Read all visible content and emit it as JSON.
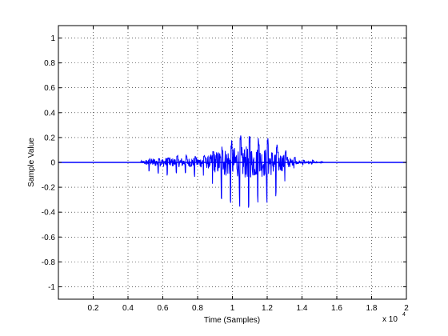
{
  "chart_data": {
    "type": "line",
    "title": "",
    "xlabel": "Time (Samples)",
    "ylabel": "Sample Value",
    "x_exponent_label": "x 10",
    "x_exponent_power": "4",
    "xlim": [
      0,
      20000
    ],
    "ylim": [
      -1.1,
      1.1
    ],
    "x_ticks": [
      2000,
      4000,
      6000,
      8000,
      10000,
      12000,
      14000,
      16000,
      18000,
      20000
    ],
    "x_tick_labels": [
      "0.2",
      "0.4",
      "0.6",
      "0.8",
      "1",
      "1.2",
      "1.4",
      "1.6",
      "1.8",
      "2"
    ],
    "y_ticks": [
      -1,
      -0.8,
      -0.6,
      -0.4,
      -0.2,
      0,
      0.2,
      0.4,
      0.6,
      0.8,
      1
    ],
    "y_tick_labels": [
      "-1",
      "-0.8",
      "-0.6",
      "-0.4",
      "-0.2",
      "0",
      "0.2",
      "0.4",
      "0.6",
      "0.8",
      "1"
    ],
    "grid": true,
    "line_color": "#0000ff",
    "series": [
      {
        "values_description": "audio waveform envelope",
        "envelope": {
          "x": [
            0,
            4700,
            4800,
            5000,
            5300,
            5500,
            5700,
            6000,
            6300,
            6600,
            7000,
            7400,
            7800,
            8200,
            8600,
            8900,
            9200,
            9500,
            9800,
            10000,
            10200,
            10500,
            10800,
            11100,
            11400,
            11700,
            12000,
            12300,
            12600,
            12900,
            13200,
            13500,
            13800,
            14000,
            14500,
            15000,
            15300,
            20000
          ],
          "upper": [
            0,
            0,
            0.02,
            0.04,
            0.03,
            0.05,
            0.04,
            0.05,
            0.04,
            0.06,
            0.05,
            0.06,
            0.05,
            0.06,
            0.07,
            0.1,
            0.12,
            0.15,
            0.17,
            0.18,
            0.2,
            0.22,
            0.22,
            0.24,
            0.23,
            0.21,
            0.2,
            0.18,
            0.15,
            0.12,
            0.1,
            0.06,
            0.03,
            0.02,
            0.02,
            0.015,
            0,
            0
          ],
          "lower": [
            0,
            0,
            -0.02,
            -0.06,
            -0.08,
            -0.1,
            -0.09,
            -0.1,
            -0.12,
            -0.1,
            -0.11,
            -0.1,
            -0.12,
            -0.12,
            -0.14,
            -0.22,
            -0.28,
            -0.32,
            -0.34,
            -0.35,
            -0.35,
            -0.36,
            -0.37,
            -0.36,
            -0.35,
            -0.34,
            -0.33,
            -0.3,
            -0.26,
            -0.2,
            -0.14,
            -0.06,
            -0.03,
            -0.02,
            -0.015,
            -0.01,
            0,
            0
          ]
        }
      }
    ]
  }
}
